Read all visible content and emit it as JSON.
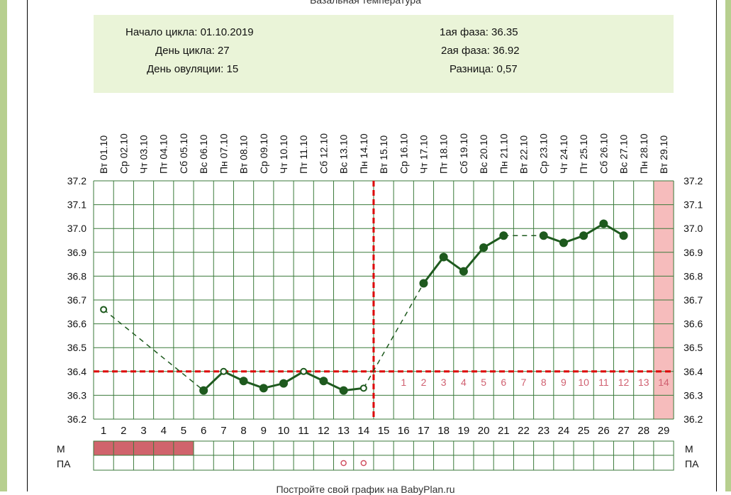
{
  "header": {
    "title": "Базальная температура"
  },
  "info": {
    "cycle_start": "Начало цикла: 01.10.2019",
    "cycle_day": "День цикла: 27",
    "ovulation_day": "День овуляции: 15",
    "phase1": "1ая фаза: 36.35",
    "phase2": "2ая фаза: 36.92",
    "diff": "Разница: 0,57"
  },
  "footer": {
    "text": "Постройте свой график на BabyPlan.ru"
  },
  "chart_data": {
    "type": "line",
    "days": [
      1,
      2,
      3,
      4,
      5,
      6,
      7,
      8,
      9,
      10,
      11,
      12,
      13,
      14,
      15,
      16,
      17,
      18,
      19,
      20,
      21,
      22,
      23,
      24,
      25,
      26,
      27,
      28,
      29
    ],
    "dates": [
      "Вт 01.10",
      "Ср 02.10",
      "Чт 03.10",
      "Пт 04.10",
      "Сб 05.10",
      "Вс 06.10",
      "Пн 07.10",
      "Вт 08.10",
      "Ср 09.10",
      "Чт 10.10",
      "Пт 11.10",
      "Сб 12.10",
      "Вс 13.10",
      "Пн 14.10",
      "Вт 15.10",
      "Ср 16.10",
      "Чт 17.10",
      "Пт 18.10",
      "Сб 19.10",
      "Вс 20.10",
      "Пн 21.10",
      "Вт 22.10",
      "Ср 23.10",
      "Чт 24.10",
      "Пт 25.10",
      "Сб 26.10",
      "Вс 27.10",
      "Пн 28.10",
      "Вт 29.10"
    ],
    "temperatures": [
      36.66,
      null,
      null,
      null,
      null,
      36.32,
      36.4,
      36.36,
      36.33,
      36.35,
      36.4,
      36.36,
      36.32,
      36.33,
      null,
      null,
      36.77,
      36.88,
      36.82,
      36.92,
      36.97,
      null,
      36.97,
      36.94,
      36.97,
      37.02,
      36.97,
      null,
      null
    ],
    "hollow_points": [
      1,
      7,
      11,
      14
    ],
    "ylim": [
      36.2,
      37.2
    ],
    "yticks": [
      "37.2",
      "37.1",
      "37.0",
      "36.9",
      "36.8",
      "36.7",
      "36.6",
      "36.5",
      "36.4",
      "36.3",
      "36.2"
    ],
    "ovulation_day": 15,
    "cover_line": 36.4,
    "luteal_labels": [
      "1",
      "2",
      "3",
      "4",
      "5",
      "6",
      "7",
      "8",
      "9",
      "10",
      "11",
      "12",
      "13",
      "14"
    ],
    "highlight_day": 29,
    "menstruation_days": [
      1,
      2,
      3,
      4,
      5
    ],
    "pa_days": [
      13,
      14
    ],
    "row_labels": {
      "m": "М",
      "pa": "ПА"
    },
    "colors": {
      "line": "#1e5a1e",
      "cover": "#dd0000",
      "grid": "#3a7a3a",
      "luteal_text": "#d06070",
      "highlight": "#f6bcbc",
      "menstruation": "#d0646c",
      "pa_marker": "#d05060"
    },
    "grid": true
  }
}
